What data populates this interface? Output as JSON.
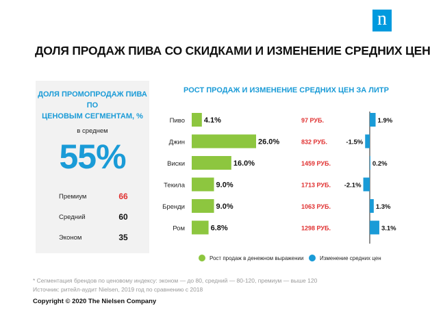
{
  "logo": {
    "letter": "n"
  },
  "title": "ДОЛЯ ПРОДАЖ ПИВА СО СКИДКАМИ И ИЗМЕНЕНИЕ СРЕДНИХ ЦЕН",
  "promo_panel": {
    "title_line1": "ДОЛЯ ПРОМОПРОДАЖ ПИВА ПО",
    "title_line2": "ЦЕНОВЫМ СЕГМЕНТАМ, %",
    "average_label": "в среднем",
    "average_value": "55%",
    "segments": [
      {
        "label": "Премиум",
        "value": "66",
        "color": "#e03131"
      },
      {
        "label": "Средний",
        "value": "60",
        "color": "#111111"
      },
      {
        "label": "Эконом",
        "value": "35",
        "color": "#111111"
      }
    ]
  },
  "chart_data": {
    "type": "bar",
    "title": "РОСТ ПРОДАЖ И ИЗМЕНЕНИЕ СРЕДНИХ ЦЕН ЗА ЛИТР",
    "categories": [
      "Пиво",
      "Джин",
      "Виски",
      "Текила",
      "Бренди",
      "Ром"
    ],
    "series": [
      {
        "name": "Рост продаж в денежном выражении",
        "color": "#8dc63f",
        "values": [
          4.1,
          26.0,
          16.0,
          9.0,
          9.0,
          6.8
        ],
        "labels": [
          "4.1%",
          "26.0%",
          "16.0%",
          "9.0%",
          "9.0%",
          "6.8%"
        ]
      },
      {
        "name": "Изменение средних цен",
        "color": "#1a9bd7",
        "values": [
          1.9,
          -1.5,
          0.2,
          -2.1,
          1.3,
          3.1
        ],
        "labels": [
          "1.9%",
          "-1.5%",
          "0.2%",
          "-2.1%",
          "1.3%",
          "3.1%"
        ]
      }
    ],
    "avg_prices": [
      "97 РУБ.",
      "832 РУБ.",
      "1459 РУБ.",
      "1713 РУБ.",
      "1063 РУБ.",
      "1298 РУБ."
    ],
    "avg_price_color": "#e03131"
  },
  "footnote1": "* Сегментация брендов по ценовому индексу: эконом — до 80, средний — 80-120, премиум — выше 120",
  "footnote2": "Источник: ритейл-аудит Nielsen, 2019 год по сравнению с 2018",
  "copyright": "Copyright © 2020 The Nielsen Company"
}
